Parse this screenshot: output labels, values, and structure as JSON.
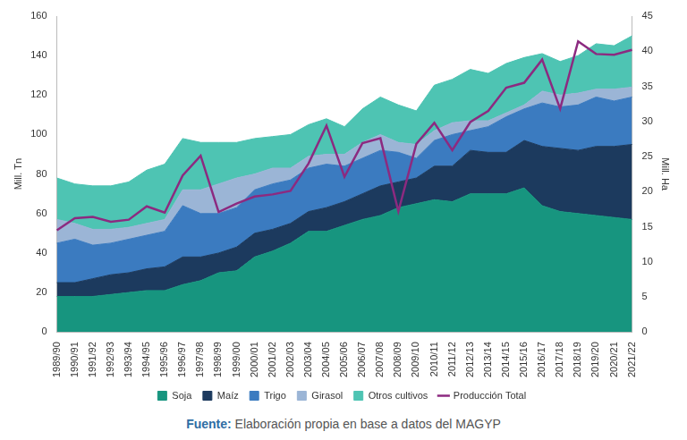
{
  "chart_data": {
    "type": "area",
    "stacked": true,
    "grid": false,
    "legend": "bottom",
    "categories": [
      "1989/90",
      "1990/91",
      "1991/92",
      "1992/93",
      "1993/94",
      "1994/95",
      "1995/96",
      "1996/97",
      "1997/98",
      "1998/99",
      "1999/00",
      "2000/01",
      "2001/02",
      "2002/03",
      "2003/04",
      "2004/05",
      "2005/06",
      "2006/07",
      "2007/08",
      "2008/09",
      "2009/10",
      "2010/11",
      "2011/12",
      "2012/13",
      "2013/14",
      "2014/15",
      "2015/16",
      "2016/17",
      "2017/18",
      "2018/19",
      "2019/20",
      "2020/21",
      "2021/22"
    ],
    "y_label": "Mill. Tn",
    "y2_label": "Mill. Ha",
    "ylim": [
      0,
      160
    ],
    "yticks": [
      0,
      20,
      40,
      60,
      80,
      100,
      120,
      140,
      160
    ],
    "y2lim": [
      0,
      45
    ],
    "y2ticks": [
      0,
      5,
      10,
      15,
      20,
      25,
      30,
      35,
      40,
      45
    ],
    "series": [
      {
        "name": "Soja",
        "color": "#17957f",
        "type": "area",
        "values": [
          18,
          18,
          18,
          19,
          20,
          21,
          21,
          24,
          26,
          30,
          31,
          38,
          41,
          45,
          51,
          51,
          54,
          57,
          59,
          63,
          65,
          67,
          66,
          70,
          70,
          70,
          73,
          64,
          61,
          60,
          59,
          58,
          57
        ]
      },
      {
        "name": "Maíz",
        "color": "#1c3a5e",
        "type": "area",
        "values": [
          7,
          7,
          9,
          10,
          10,
          11,
          12,
          14,
          12,
          10,
          12,
          12,
          11,
          10,
          10,
          12,
          12,
          13,
          15,
          13,
          13,
          17,
          18,
          22,
          21,
          21,
          24,
          30,
          32,
          32,
          35,
          36,
          38
        ]
      },
      {
        "name": "Trigo",
        "color": "#3b7bc0",
        "type": "area",
        "values": [
          20,
          22,
          17,
          16,
          17,
          17,
          18,
          26,
          22,
          20,
          20,
          22,
          23,
          22,
          22,
          22,
          18,
          18,
          18,
          15,
          10,
          13,
          16,
          10,
          13,
          18,
          16,
          22,
          21,
          23,
          25,
          23,
          24
        ]
      },
      {
        "name": "Girasol",
        "color": "#9bb5d6",
        "type": "area",
        "values": [
          12,
          8,
          8,
          7,
          6,
          6,
          6,
          8,
          12,
          15,
          15,
          8,
          8,
          6,
          6,
          5,
          6,
          8,
          8,
          5,
          7,
          5,
          6,
          5,
          3,
          2,
          2,
          6,
          6,
          6,
          4,
          6,
          5
        ]
      },
      {
        "name": "Otros cultivos",
        "color": "#4ec4b3",
        "type": "area",
        "values": [
          21,
          20,
          22,
          22,
          23,
          27,
          28,
          26,
          24,
          21,
          18,
          18,
          16,
          17,
          16,
          18,
          14,
          17,
          19,
          19,
          17,
          23,
          22,
          26,
          24,
          25,
          24,
          19,
          17,
          19,
          23,
          22,
          26
        ]
      },
      {
        "name": "Producción Total",
        "color": "#8c2a80",
        "type": "line",
        "axis": "y2",
        "values": [
          14.5,
          16.2,
          16.4,
          15.7,
          16,
          17.9,
          17,
          22.3,
          25.1,
          17.1,
          18.3,
          19.3,
          19.6,
          20.1,
          24,
          29.4,
          22.1,
          26.9,
          27.6,
          17.2,
          26.8,
          29.8,
          25.9,
          29.9,
          31.5,
          34.8,
          35.5,
          38.8,
          31.8,
          41.4,
          39.6,
          39.5,
          40.2
        ]
      }
    ]
  },
  "footer": {
    "label": "Fuente:",
    "text": "Elaboración propia en base a datos del MAGYP"
  }
}
